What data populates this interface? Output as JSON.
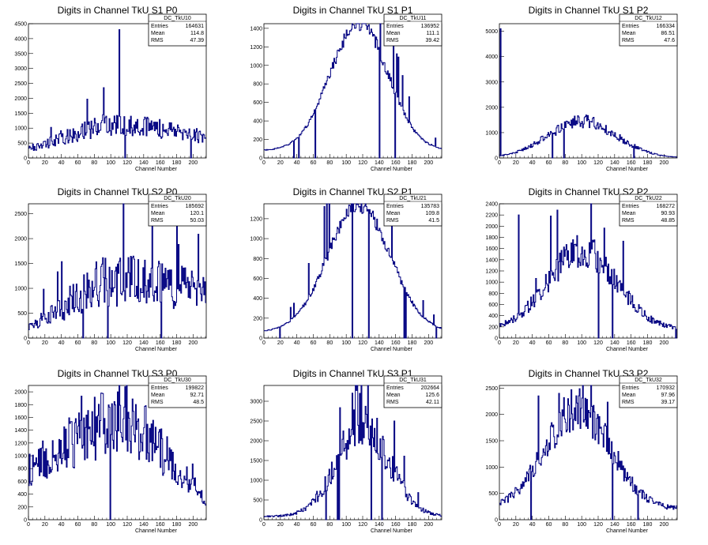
{
  "chart_data": [
    {
      "type": "histogram",
      "title": "Digits in Channel TkU S1 P0",
      "xlabel": "Channel Number",
      "xlim": [
        0,
        216
      ],
      "ylim": [
        0,
        4500
      ],
      "yticks": [
        0,
        500,
        1000,
        1500,
        2000,
        2500,
        3000,
        3500,
        4000,
        4500
      ],
      "stats": {
        "name": "DC_TkU10",
        "entries": "164631",
        "mean": "114.8",
        "rms": "47.39"
      },
      "shape": {
        "kind": "plateau",
        "level": [
          300,
          1100,
          700
        ],
        "peak": [
          110,
          4300
        ],
        "noise": 0.35
      }
    },
    {
      "type": "histogram",
      "title": "Digits in Channel TkU S1 P1",
      "xlabel": "Channel Number",
      "xlim": [
        0,
        216
      ],
      "ylim": [
        0,
        1450
      ],
      "yticks": [
        0,
        200,
        400,
        600,
        800,
        1000,
        1200,
        1400
      ],
      "stats": {
        "name": "DC_TkU11",
        "entries": "136952",
        "mean": "111.1",
        "rms": "39.42"
      },
      "shape": {
        "kind": "gauss",
        "mu": 115,
        "sigma": 35,
        "amp": 1380,
        "base": 80,
        "noise": 0.06
      }
    },
    {
      "type": "histogram",
      "title": "Digits in Channel TkU S1 P2",
      "xlabel": "Channel Number",
      "xlim": [
        0,
        216
      ],
      "ylim": [
        0,
        5300
      ],
      "yticks": [
        0,
        1000,
        2000,
        3000,
        4000,
        5000
      ],
      "stats": {
        "name": "DC_TkU12",
        "entries": "166334",
        "mean": "86.51",
        "rms": "47.6"
      },
      "shape": {
        "kind": "gauss",
        "mu": 100,
        "sigma": 42,
        "amp": 1450,
        "base": 0,
        "noise": 0.18,
        "spike": [
          1,
          5100
        ]
      }
    },
    {
      "type": "histogram",
      "title": "Digits in Channel TkU S2 P0",
      "xlabel": "Channel Number",
      "xlim": [
        0,
        216
      ],
      "ylim": [
        0,
        2700
      ],
      "yticks": [
        0,
        500,
        1000,
        1500,
        2000,
        2500
      ],
      "stats": {
        "name": "DC_TkU20",
        "entries": "185692",
        "mean": "120.1",
        "rms": "50.03"
      },
      "shape": {
        "kind": "plateau",
        "level": [
          200,
          1150,
          900
        ],
        "peak": [
          150,
          2550
        ],
        "noise": 0.45
      }
    },
    {
      "type": "histogram",
      "title": "Digits in Channel TkU S2 P1",
      "xlabel": "Channel Number",
      "xlim": [
        0,
        216
      ],
      "ylim": [
        0,
        1350
      ],
      "yticks": [
        0,
        200,
        400,
        600,
        800,
        1000,
        1200
      ],
      "stats": {
        "name": "DC_TkU21",
        "entries": "135783",
        "mean": "109.8",
        "rms": "41.5"
      },
      "shape": {
        "kind": "gauss",
        "mu": 115,
        "sigma": 38,
        "amp": 1270,
        "base": 60,
        "noise": 0.06
      }
    },
    {
      "type": "histogram",
      "title": "Digits in Channel TkU S2 P2",
      "xlabel": "Channel Number",
      "xlim": [
        0,
        216
      ],
      "ylim": [
        0,
        2400
      ],
      "yticks": [
        0,
        200,
        400,
        600,
        800,
        1000,
        1200,
        1400,
        1600,
        1800,
        2000,
        2200,
        2400
      ],
      "stats": {
        "name": "DC_TkU22",
        "entries": "168272",
        "mean": "90.93",
        "rms": "48.85"
      },
      "shape": {
        "kind": "gauss",
        "mu": 100,
        "sigma": 42,
        "amp": 1400,
        "base": 150,
        "noise": 0.2,
        "spike": [
          23,
          2200
        ]
      }
    },
    {
      "type": "histogram",
      "title": "Digits in Channel TkU S3 P0",
      "xlabel": "Channel Number",
      "xlim": [
        0,
        216
      ],
      "ylim": [
        0,
        2100
      ],
      "yticks": [
        0,
        200,
        400,
        600,
        800,
        1000,
        1200,
        1400,
        1600,
        1800,
        2000
      ],
      "stats": {
        "name": "DC_TkU30",
        "entries": "199822",
        "mean": "92.71",
        "rms": "48.5"
      },
      "shape": {
        "kind": "plateau",
        "level": [
          800,
          1500,
          300
        ],
        "peak": [
          108,
          2000
        ],
        "noise": 0.35
      }
    },
    {
      "type": "histogram",
      "title": "Digits in Channel TkU S3 P1",
      "xlabel": "Channel Number",
      "xlim": [
        0,
        216
      ],
      "ylim": [
        0,
        3400
      ],
      "yticks": [
        0,
        500,
        1000,
        1500,
        2000,
        2500,
        3000
      ],
      "stats": {
        "name": "DC_TkU31",
        "entries": "202664",
        "mean": "125.6",
        "rms": "42.11"
      },
      "shape": {
        "kind": "gauss",
        "mu": 120,
        "sigma": 32,
        "amp": 2300,
        "base": 80,
        "noise": 0.25,
        "spike": [
          116,
          3200
        ]
      }
    },
    {
      "type": "histogram",
      "title": "Digits in Channel TkU S3 P2",
      "xlabel": "Channel Number",
      "xlim": [
        0,
        216
      ],
      "ylim": [
        0,
        2550
      ],
      "yticks": [
        0,
        500,
        1000,
        1500,
        2000,
        2500
      ],
      "stats": {
        "name": "DC_TkU32",
        "entries": "170932",
        "mean": "97.96",
        "rms": "39.17"
      },
      "shape": {
        "kind": "gauss",
        "mu": 95,
        "sigma": 40,
        "amp": 1900,
        "base": 200,
        "noise": 0.2,
        "spike": [
          72,
          2400
        ]
      }
    }
  ],
  "labels": {
    "entries": "Entries",
    "mean": "Mean",
    "rms": "RMS"
  },
  "xticks": [
    0,
    20,
    40,
    60,
    80,
    100,
    120,
    140,
    160,
    180,
    200
  ],
  "colors": {
    "line": "#000080",
    "axis": "#000000"
  }
}
